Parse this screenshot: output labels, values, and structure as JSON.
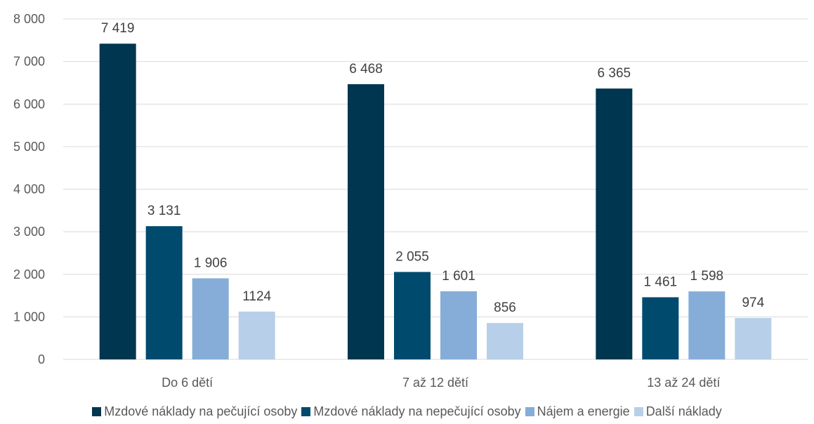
{
  "chart_data": {
    "type": "bar",
    "categories": [
      "Do 6 dětí",
      "7 až 12 dětí",
      "13 až 24 dětí"
    ],
    "series": [
      {
        "name": "Mzdové náklady na pečující osoby",
        "color": "#003650",
        "values": [
          7419,
          6468,
          6365
        ],
        "labels": [
          "7 419",
          "6 468",
          "6 365"
        ]
      },
      {
        "name": "Mzdové náklady na nepečující osoby",
        "color": "#004a6e",
        "values": [
          3131,
          2055,
          1461
        ],
        "labels": [
          "3 131",
          "2 055",
          "1 461"
        ]
      },
      {
        "name": "Nájem a energie",
        "color": "#86add8",
        "values": [
          1906,
          1601,
          1598
        ],
        "labels": [
          "1 906",
          "1 601",
          "1 598"
        ]
      },
      {
        "name": "Další náklady",
        "color": "#b8cfe9",
        "values": [
          1124,
          856,
          974
        ],
        "labels": [
          "1124",
          "856",
          "974"
        ]
      }
    ],
    "yticks": [
      0,
      1000,
      2000,
      3000,
      4000,
      5000,
      6000,
      7000,
      8000
    ],
    "ytick_labels": [
      "0",
      "1 000",
      "2 000",
      "3 000",
      "4 000",
      "5 000",
      "6 000",
      "7 000",
      "8 000"
    ],
    "ylim": [
      0,
      8000
    ],
    "grid": true,
    "legend_position": "bottom",
    "title": "",
    "xlabel": "",
    "ylabel": ""
  }
}
